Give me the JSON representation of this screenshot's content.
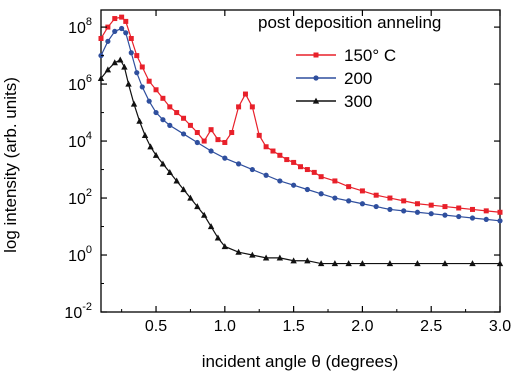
{
  "chart_data": {
    "type": "line",
    "title": "",
    "xlabel": "incident angle θ (degrees)",
    "ylabel": "log intensity (arb. units)",
    "xlim": [
      0.1,
      3.0
    ],
    "ylim_log10": [
      -2,
      8.6
    ],
    "yscale": "log",
    "grid": false,
    "legend_title": "post deposition anneling",
    "legend_position": "top-right",
    "x_ticks": [
      "0.5",
      "1.0",
      "1.5",
      "2.0",
      "2.5",
      "3.0"
    ],
    "x_tick_values": [
      0.5,
      1.0,
      1.5,
      2.0,
      2.5,
      3.0
    ],
    "y_ticks": [
      {
        "exp": -2,
        "base": "10",
        "sup": "-2"
      },
      {
        "exp": 0,
        "base": "10",
        "sup": "0"
      },
      {
        "exp": 2,
        "base": "10",
        "sup": "2"
      },
      {
        "exp": 4,
        "base": "10",
        "sup": "4"
      },
      {
        "exp": 6,
        "base": "10",
        "sup": "6"
      },
      {
        "exp": 8,
        "base": "10",
        "sup": "8"
      }
    ],
    "series": [
      {
        "name": "150° C",
        "color": "#e8202a",
        "marker": "square",
        "x": [
          0.1,
          0.15,
          0.2,
          0.25,
          0.28,
          0.32,
          0.36,
          0.4,
          0.45,
          0.5,
          0.55,
          0.6,
          0.65,
          0.7,
          0.75,
          0.8,
          0.85,
          0.9,
          0.95,
          1.0,
          1.05,
          1.1,
          1.15,
          1.2,
          1.25,
          1.3,
          1.35,
          1.4,
          1.45,
          1.5,
          1.55,
          1.6,
          1.65,
          1.7,
          1.8,
          1.9,
          2.0,
          2.1,
          2.2,
          2.3,
          2.4,
          2.5,
          2.6,
          2.7,
          2.8,
          2.9,
          3.0
        ],
        "log10": [
          7.6,
          8.0,
          8.3,
          8.35,
          8.2,
          7.6,
          7.0,
          6.6,
          6.1,
          5.8,
          5.5,
          5.2,
          5.0,
          4.8,
          4.55,
          4.3,
          4.0,
          4.4,
          4.05,
          3.95,
          4.3,
          5.2,
          5.65,
          5.2,
          4.2,
          3.8,
          3.65,
          3.5,
          3.35,
          3.25,
          3.1,
          3.0,
          2.9,
          2.75,
          2.6,
          2.4,
          2.25,
          2.1,
          2.0,
          1.9,
          1.8,
          1.75,
          1.7,
          1.65,
          1.6,
          1.55,
          1.5
        ]
      },
      {
        "name": "200",
        "color": "#2f4f9e",
        "marker": "circle",
        "x": [
          0.1,
          0.15,
          0.2,
          0.25,
          0.28,
          0.32,
          0.36,
          0.4,
          0.45,
          0.5,
          0.55,
          0.6,
          0.7,
          0.8,
          0.9,
          1.0,
          1.1,
          1.2,
          1.3,
          1.4,
          1.5,
          1.6,
          1.7,
          1.8,
          1.9,
          2.0,
          2.1,
          2.2,
          2.3,
          2.4,
          2.5,
          2.6,
          2.7,
          2.8,
          2.9,
          3.0
        ],
        "log10": [
          7.0,
          7.5,
          7.85,
          7.95,
          7.8,
          7.1,
          6.4,
          5.9,
          5.4,
          5.0,
          4.75,
          4.55,
          4.25,
          3.95,
          3.65,
          3.4,
          3.2,
          3.0,
          2.8,
          2.6,
          2.45,
          2.3,
          2.15,
          2.0,
          1.9,
          1.8,
          1.7,
          1.6,
          1.55,
          1.5,
          1.45,
          1.4,
          1.35,
          1.3,
          1.25,
          1.2
        ]
      },
      {
        "name": "300",
        "color": "#111111",
        "marker": "triangle",
        "x": [
          0.1,
          0.15,
          0.2,
          0.24,
          0.27,
          0.3,
          0.34,
          0.38,
          0.42,
          0.46,
          0.5,
          0.55,
          0.6,
          0.65,
          0.7,
          0.75,
          0.8,
          0.85,
          0.9,
          0.95,
          1.0,
          1.1,
          1.2,
          1.3,
          1.4,
          1.5,
          1.6,
          1.7,
          1.8,
          1.9,
          2.0,
          2.2,
          2.4,
          2.6,
          2.8,
          3.0
        ],
        "log10": [
          6.2,
          6.5,
          6.75,
          6.85,
          6.6,
          6.0,
          5.3,
          4.7,
          4.2,
          3.8,
          3.5,
          3.2,
          2.9,
          2.6,
          2.3,
          2.0,
          1.7,
          1.4,
          1.0,
          0.6,
          0.3,
          0.1,
          0.0,
          -0.1,
          -0.1,
          -0.2,
          -0.2,
          -0.3,
          -0.3,
          -0.3,
          -0.3,
          -0.3,
          -0.3,
          -0.3,
          -0.3,
          -0.3
        ]
      }
    ]
  }
}
